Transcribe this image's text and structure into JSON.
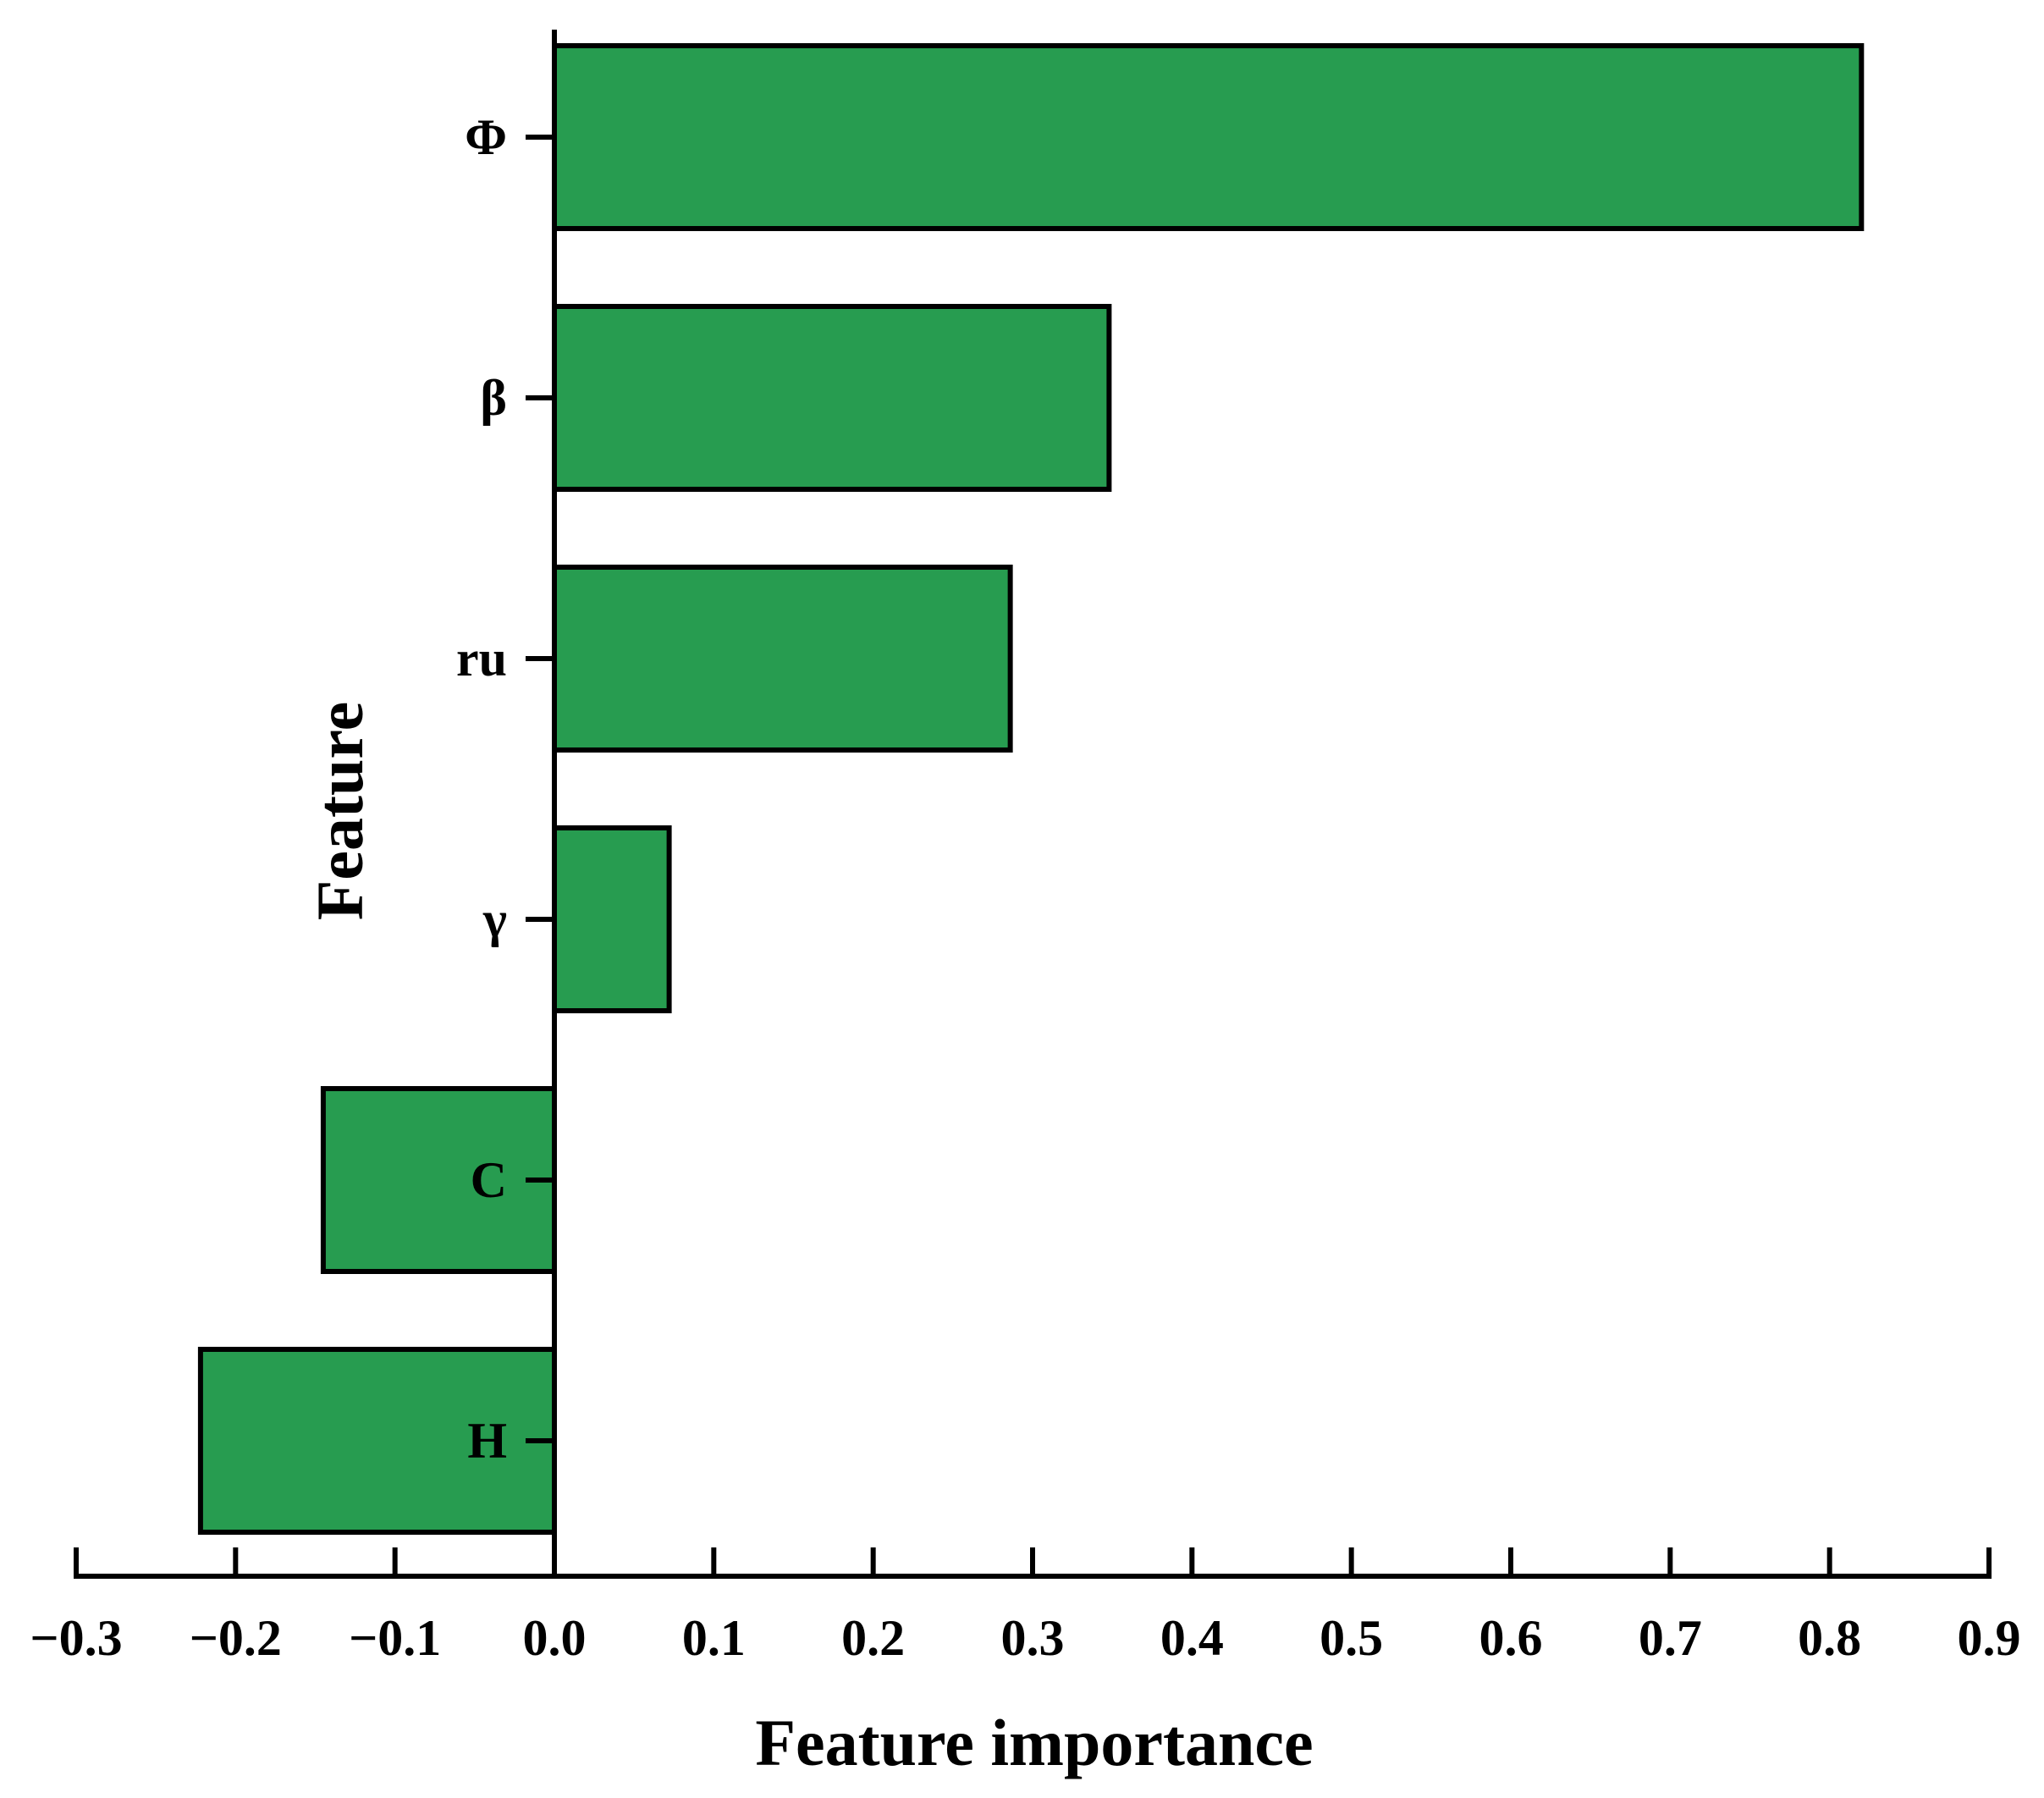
{
  "chart_data": {
    "type": "bar",
    "orientation": "horizontal",
    "categories": [
      "Φ",
      "β",
      "ru",
      "γ",
      "C",
      "H"
    ],
    "values": [
      0.82,
      0.348,
      0.286,
      0.072,
      -0.145,
      -0.222
    ],
    "xlabel": "Feature importance",
    "ylabel": "Feature",
    "xlim": [
      -0.3,
      0.9
    ],
    "xticks": [
      -0.3,
      -0.2,
      -0.1,
      0.0,
      0.1,
      0.2,
      0.3,
      0.4,
      0.5,
      0.6,
      0.7,
      0.8,
      0.9
    ],
    "xtick_labels": [
      "−0.3",
      "−0.2",
      "−0.1",
      "0.0",
      "0.1",
      "0.2",
      "0.3",
      "0.4",
      "0.5",
      "0.6",
      "0.7",
      "0.8",
      "0.9"
    ],
    "grid": false,
    "legend": "none",
    "bar_color": "#279c50",
    "edge_color": "#000000"
  }
}
